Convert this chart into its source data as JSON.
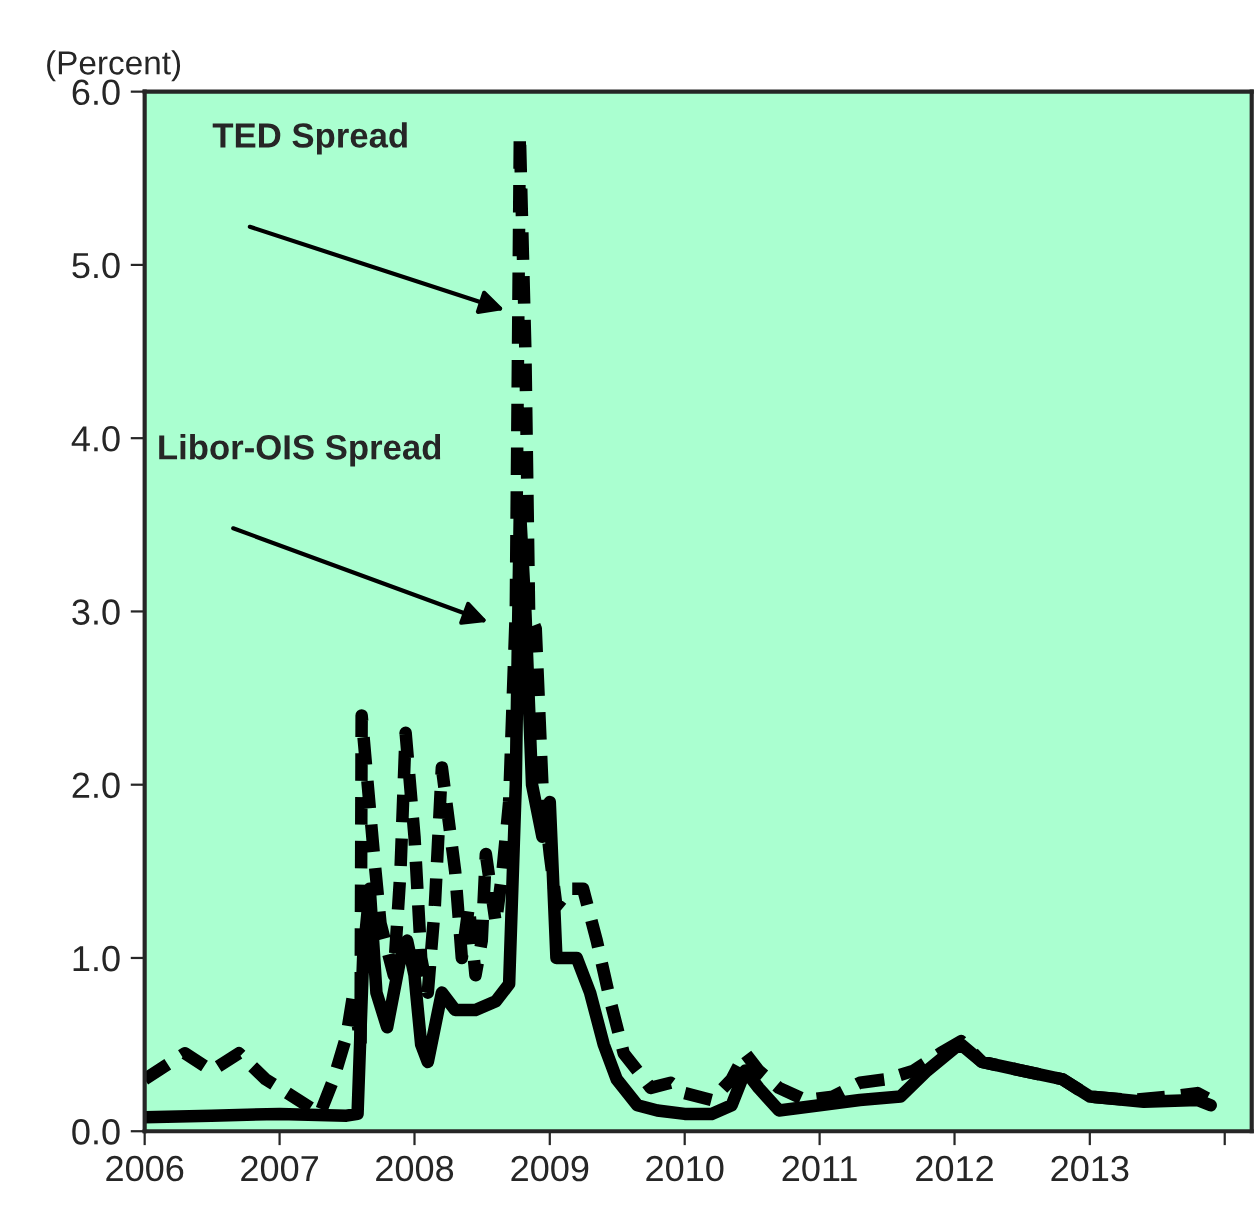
{
  "chart_data": {
    "type": "line",
    "ylabel": "(Percent)",
    "x": [
      "2006-01-01",
      "2006-04-20",
      "2006-07-01",
      "2006-09-13",
      "2006-11-24",
      "2007-01-01",
      "2007-03-15",
      "2007-04-20",
      "2007-05-27",
      "2007-07-01",
      "2007-07-20",
      "2007-08-08",
      "2007-08-11",
      "2007-09-13",
      "2007-10-01",
      "2007-11-06",
      "2007-11-24",
      "2007-12-08",
      "2008-01-01",
      "2008-01-19",
      "2008-02-06",
      "2008-02-25",
      "2008-03-15",
      "2008-04-20",
      "2008-05-08",
      "2008-05-27",
      "2008-06-14",
      "2008-07-01",
      "2008-07-12",
      "2008-08-08",
      "2008-08-26",
      "2008-09-13",
      "2008-10-01",
      "2008-10-12",
      "2008-10-27",
      "2008-11-06",
      "2008-11-24",
      "2008-12-12",
      "2009-01-01",
      "2009-01-19",
      "2009-02-25",
      "2009-04-01",
      "2009-05-08",
      "2009-06-14",
      "2009-07-20",
      "2009-08-26",
      "2009-10-01",
      "2009-11-24",
      "2010-01-01",
      "2010-03-15",
      "2010-05-08",
      "2010-06-14",
      "2010-07-20",
      "2010-09-13",
      "2010-11-24",
      "2011-02-06",
      "2011-04-20",
      "2011-07-01",
      "2011-09-13",
      "2011-11-24",
      "2012-01-19",
      "2012-03-15",
      "2012-07-01",
      "2012-10-19",
      "2013-01-01",
      "2013-04-20",
      "2013-08-08",
      "2013-10-19",
      "2013-11-24"
    ],
    "series": [
      {
        "color": "#000000",
        "line_style": "dashed",
        "values": [
          0.3,
          0.45,
          0.35,
          0.45,
          0.3,
          0.25,
          0.15,
          0.1,
          0.3,
          0.55,
          0.8,
          0.5,
          2.4,
          1.6,
          1.2,
          0.9,
          1.5,
          2.3,
          1.7,
          1.0,
          0.8,
          1.3,
          2.1,
          1.5,
          1.0,
          1.3,
          0.9,
          1.1,
          1.6,
          1.2,
          1.5,
          1.9,
          3.0,
          5.75,
          4.5,
          3.0,
          2.9,
          2.0,
          1.6,
          1.3,
          1.4,
          1.4,
          1.1,
          0.75,
          0.45,
          0.35,
          0.25,
          0.28,
          0.22,
          0.18,
          0.3,
          0.45,
          0.35,
          0.25,
          0.18,
          0.2,
          0.28,
          0.3,
          0.35,
          0.45,
          0.52,
          0.4,
          0.35,
          0.3,
          0.2,
          0.18,
          0.2,
          0.22,
          0.18
        ]
      },
      {
        "color": "#000000",
        "line_style": "solid",
        "x": [
          "2006-01-01",
          "2006-07-01",
          "2007-01-01",
          "2007-07-01",
          "2007-07-31",
          "2007-08-15",
          "2007-09-02",
          "2007-09-20",
          "2007-10-19",
          "2007-11-24",
          "2007-12-12",
          "2008-01-01",
          "2008-01-19",
          "2008-02-06",
          "2008-03-15",
          "2008-04-20",
          "2008-06-14",
          "2008-08-08",
          "2008-09-13",
          "2008-10-01",
          "2008-10-12",
          "2008-10-27",
          "2008-11-14",
          "2008-12-12",
          "2009-01-01",
          "2009-01-19",
          "2009-03-15",
          "2009-04-20",
          "2009-05-27",
          "2009-07-01",
          "2009-08-26",
          "2009-10-19",
          "2010-01-01",
          "2010-03-15",
          "2010-05-08",
          "2010-06-14",
          "2010-07-20",
          "2010-09-13",
          "2011-01-01",
          "2011-04-20",
          "2011-08-08",
          "2011-10-19",
          "2012-01-01",
          "2012-01-19",
          "2012-03-15",
          "2012-07-01",
          "2012-10-19",
          "2013-01-01",
          "2013-05-27",
          "2013-10-19",
          "2013-11-24"
        ],
        "values": [
          0.08,
          0.09,
          0.1,
          0.09,
          0.1,
          1.0,
          1.4,
          0.8,
          0.6,
          1.0,
          1.1,
          0.9,
          0.5,
          0.4,
          0.8,
          0.7,
          0.7,
          0.75,
          0.85,
          2.0,
          3.6,
          3.0,
          2.0,
          1.7,
          1.9,
          1.0,
          1.0,
          0.8,
          0.5,
          0.3,
          0.15,
          0.12,
          0.1,
          0.1,
          0.15,
          0.35,
          0.25,
          0.12,
          0.15,
          0.18,
          0.2,
          0.35,
          0.48,
          0.5,
          0.4,
          0.35,
          0.3,
          0.2,
          0.17,
          0.18,
          0.15
        ]
      }
    ],
    "xlim": [
      "2006-01-01",
      "2014-03-15"
    ],
    "xticks": [
      {
        "value": "2006-01-01",
        "label": "2006"
      },
      {
        "value": "2007-01-01",
        "label": "2007"
      },
      {
        "value": "2008-01-01",
        "label": "2008"
      },
      {
        "value": "2009-01-01",
        "label": "2009"
      },
      {
        "value": "2010-01-01",
        "label": "2010"
      },
      {
        "value": "2011-01-01",
        "label": "2011"
      },
      {
        "value": "2012-01-01",
        "label": "2012"
      },
      {
        "value": "2013-01-01",
        "label": "2013"
      },
      {
        "value": "2014-01-01",
        "label": null
      }
    ],
    "ylim": [
      0,
      6
    ],
    "yticks": [
      {
        "value": 0,
        "label": "0.0"
      },
      {
        "value": 1,
        "label": "1.0"
      },
      {
        "value": 2,
        "label": "2.0"
      },
      {
        "value": 3,
        "label": "3.0"
      },
      {
        "value": 4,
        "label": "4.0"
      },
      {
        "value": 5,
        "label": "5.0"
      },
      {
        "value": 6,
        "label": "6.0"
      }
    ],
    "grid": false,
    "legend": false,
    "annotations": [
      "TED Spread",
      "Libor-OIS Spread"
    ]
  }
}
